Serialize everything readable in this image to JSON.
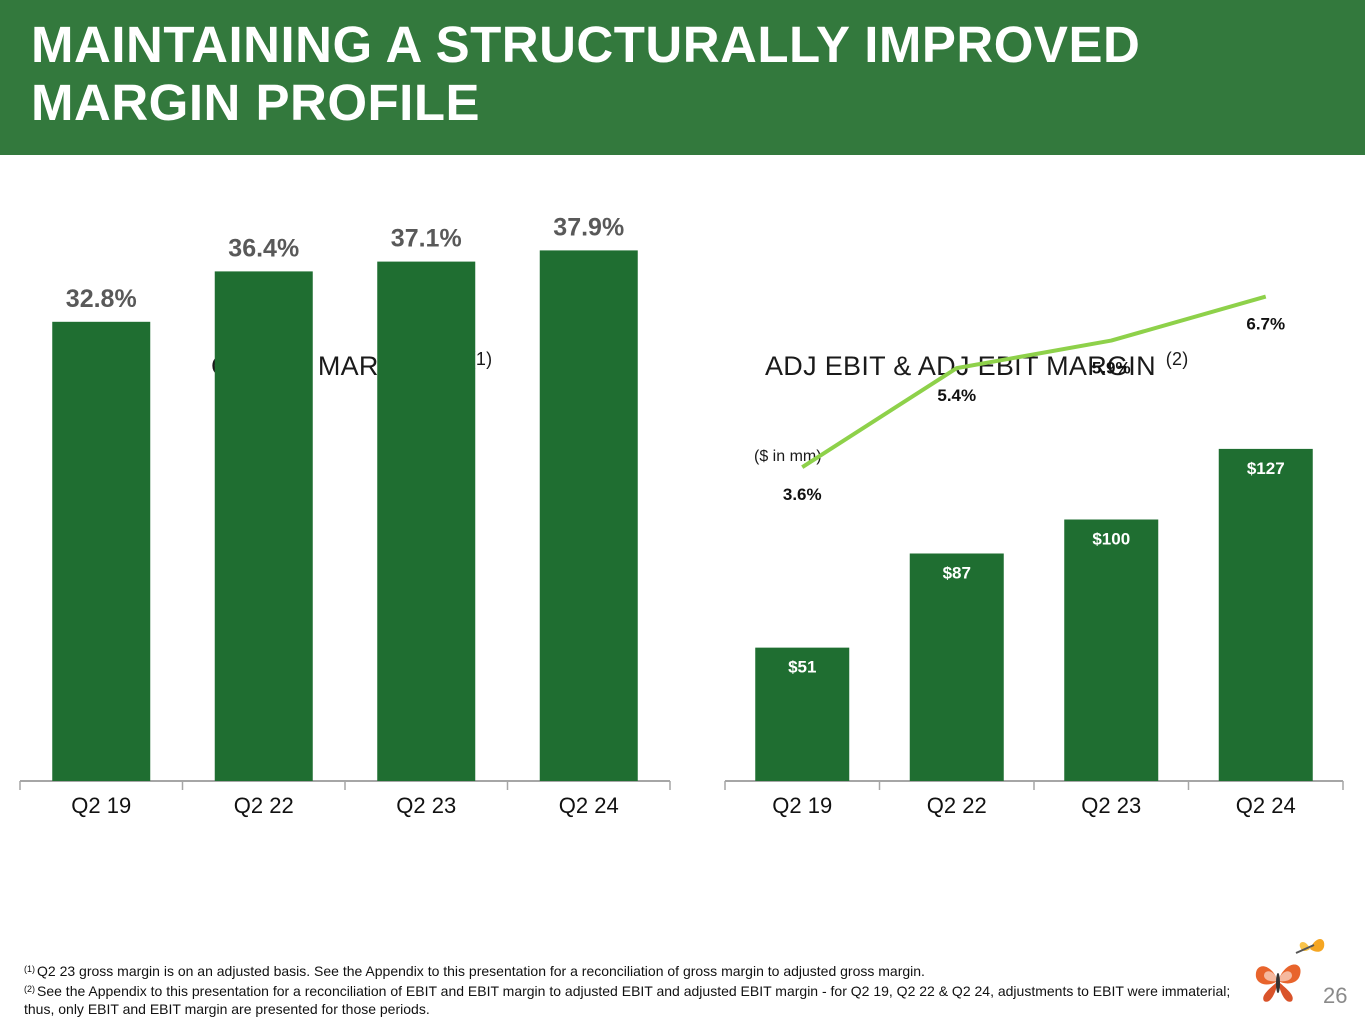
{
  "header": {
    "title": "MAINTAINING A STRUCTURALLY IMPROVED MARGIN PROFILE"
  },
  "colors": {
    "header_bg": "#33793d",
    "bar": "#1f6e31",
    "line": "#8ed14a",
    "label_gray": "#595959"
  },
  "gross_margin": {
    "title": "GROSS MARGIN %",
    "footnote_ref": "(1)"
  },
  "ebit": {
    "title": "ADJ EBIT & ADJ EBIT MARGIN",
    "footnote_ref": "(2)",
    "unit": "($ in mm)"
  },
  "chart_data": [
    {
      "type": "bar",
      "title": "GROSS MARGIN % (1)",
      "categories": [
        "Q2 19",
        "Q2 22",
        "Q2 23",
        "Q2 24"
      ],
      "values": [
        32.8,
        36.4,
        37.1,
        37.9
      ],
      "data_labels": [
        "32.8%",
        "36.4%",
        "37.1%",
        "37.9%"
      ],
      "xlabel": "",
      "ylabel": "",
      "ylim": [
        0,
        40
      ],
      "grid": false
    },
    {
      "type": "bar",
      "title": "ADJ EBIT & ADJ EBIT MARGIN (2)",
      "categories": [
        "Q2 19",
        "Q2 22",
        "Q2 23",
        "Q2 24"
      ],
      "series": [
        {
          "values": [
            51,
            87,
            100,
            127
          ],
          "data_labels": [
            "$51",
            "$87",
            "$100",
            "$127"
          ]
        },
        {
          "type": "line",
          "values": [
            3.6,
            5.4,
            5.9,
            6.7
          ],
          "data_labels": [
            "3.6%",
            "5.4%",
            "5.9%",
            "6.7%"
          ]
        }
      ],
      "ylim": [
        0,
        200
      ],
      "y2lim": [
        -2.1,
        7.4
      ],
      "annotation": "($ in mm)",
      "grid": false
    }
  ],
  "footnotes": [
    {
      "marker": "(1)",
      "text": "Q2 23 gross margin is on an adjusted basis.  See the Appendix to this presentation for a reconciliation of gross margin to adjusted gross margin."
    },
    {
      "marker": "(2)",
      "text": "See the Appendix to this presentation for a reconciliation of EBIT and EBIT margin to adjusted EBIT and adjusted EBIT margin - for Q2 19, Q2 22 & Q2 24, adjustments to EBIT were immaterial; thus, only EBIT and EBIT margin are presented for those periods."
    }
  ],
  "page_number": "26",
  "logo": {
    "icon": "butterfly-logo-icon"
  }
}
